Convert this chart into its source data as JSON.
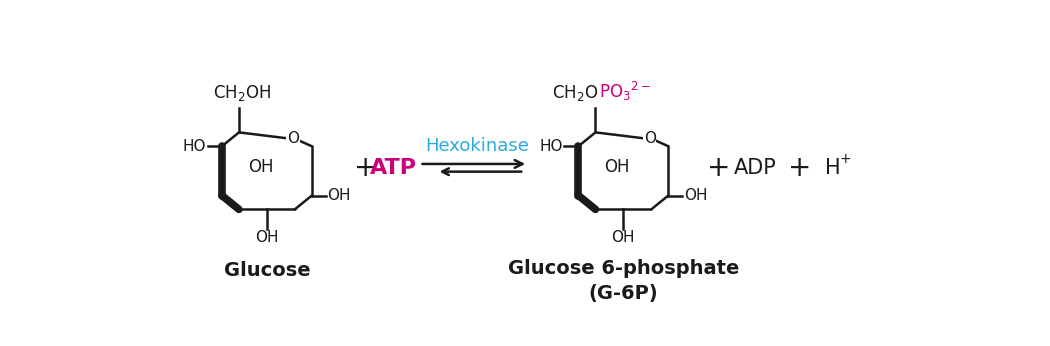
{
  "bg_color": "#ffffff",
  "black": "#1a1a1a",
  "magenta": "#cc007a",
  "cyan": "#29abe2",
  "title_glucose": "Glucose",
  "title_g6p": "Glucose 6-phosphate\n(G-6P)",
  "enzyme": "Hexokinase",
  "figsize": [
    10.5,
    3.46
  ],
  "dpi": 100,
  "lw_thin": 1.8,
  "lw_thick": 5.5,
  "font_label": 13,
  "font_sub": 12,
  "font_small": 11
}
